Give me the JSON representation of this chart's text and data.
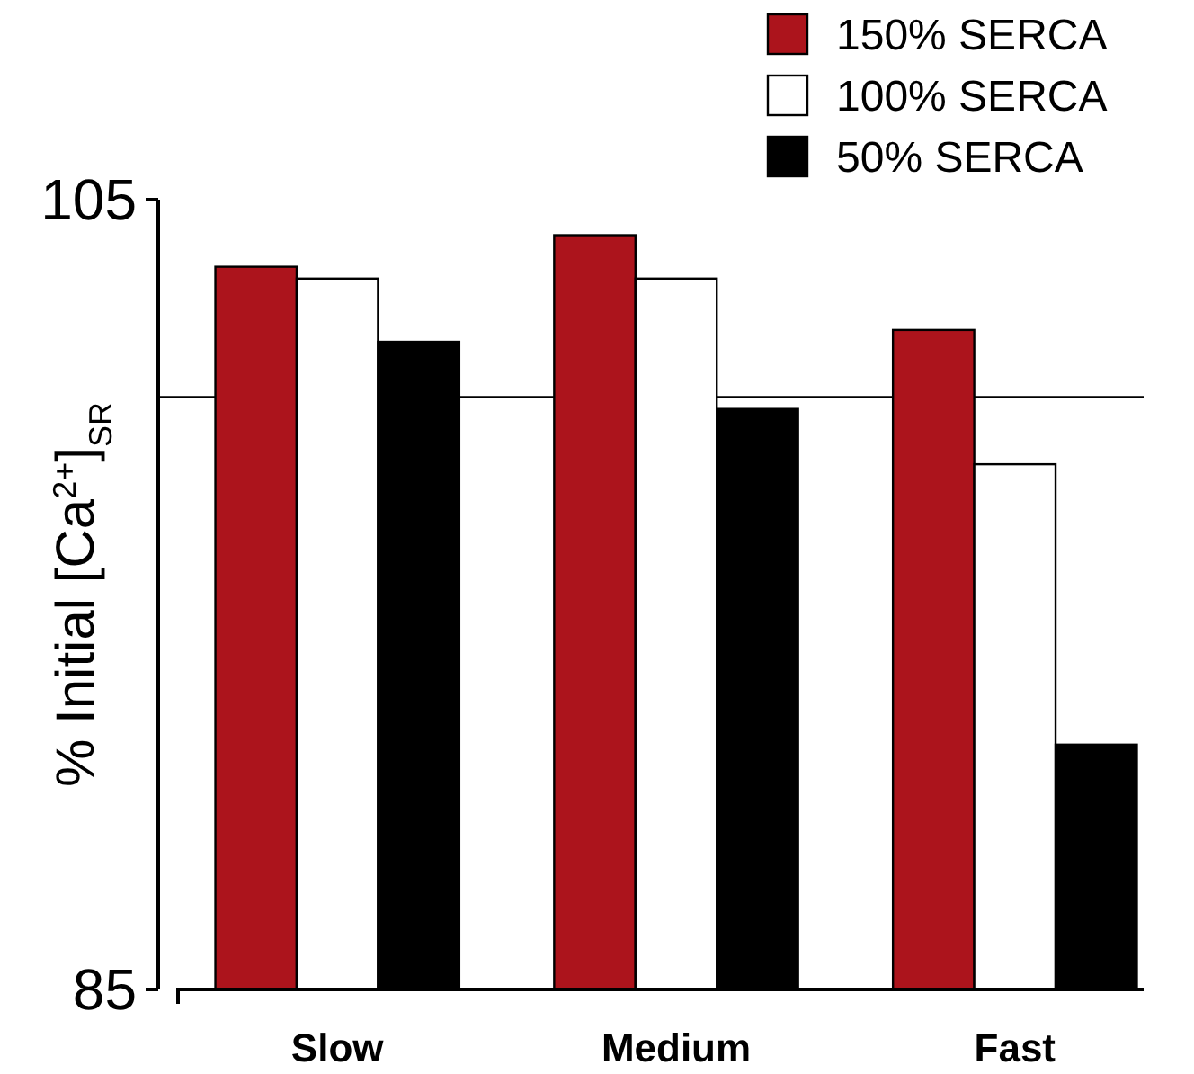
{
  "chart_data": {
    "type": "bar",
    "ylabel": "% Initial [Ca$^{2+}$]$_{SR}$",
    "categories": [
      "Slow",
      "Medium",
      "Fast"
    ],
    "series": [
      {
        "name": "150% SERCA",
        "color": "#ac141c",
        "values": [
          103.3,
          104.1,
          101.7
        ]
      },
      {
        "name": "100% SERCA",
        "color": "#ffffff",
        "values": [
          103.0,
          103.0,
          98.3
        ]
      },
      {
        "name": "50% SERCA",
        "color": "#000000",
        "values": [
          101.4,
          99.7,
          91.2
        ]
      }
    ],
    "ylim": [
      85,
      105
    ],
    "yticks": [
      85,
      105
    ],
    "grid": false,
    "legend": "top right",
    "ref_lines": [
      {
        "axis": "y",
        "value": 100
      }
    ]
  }
}
